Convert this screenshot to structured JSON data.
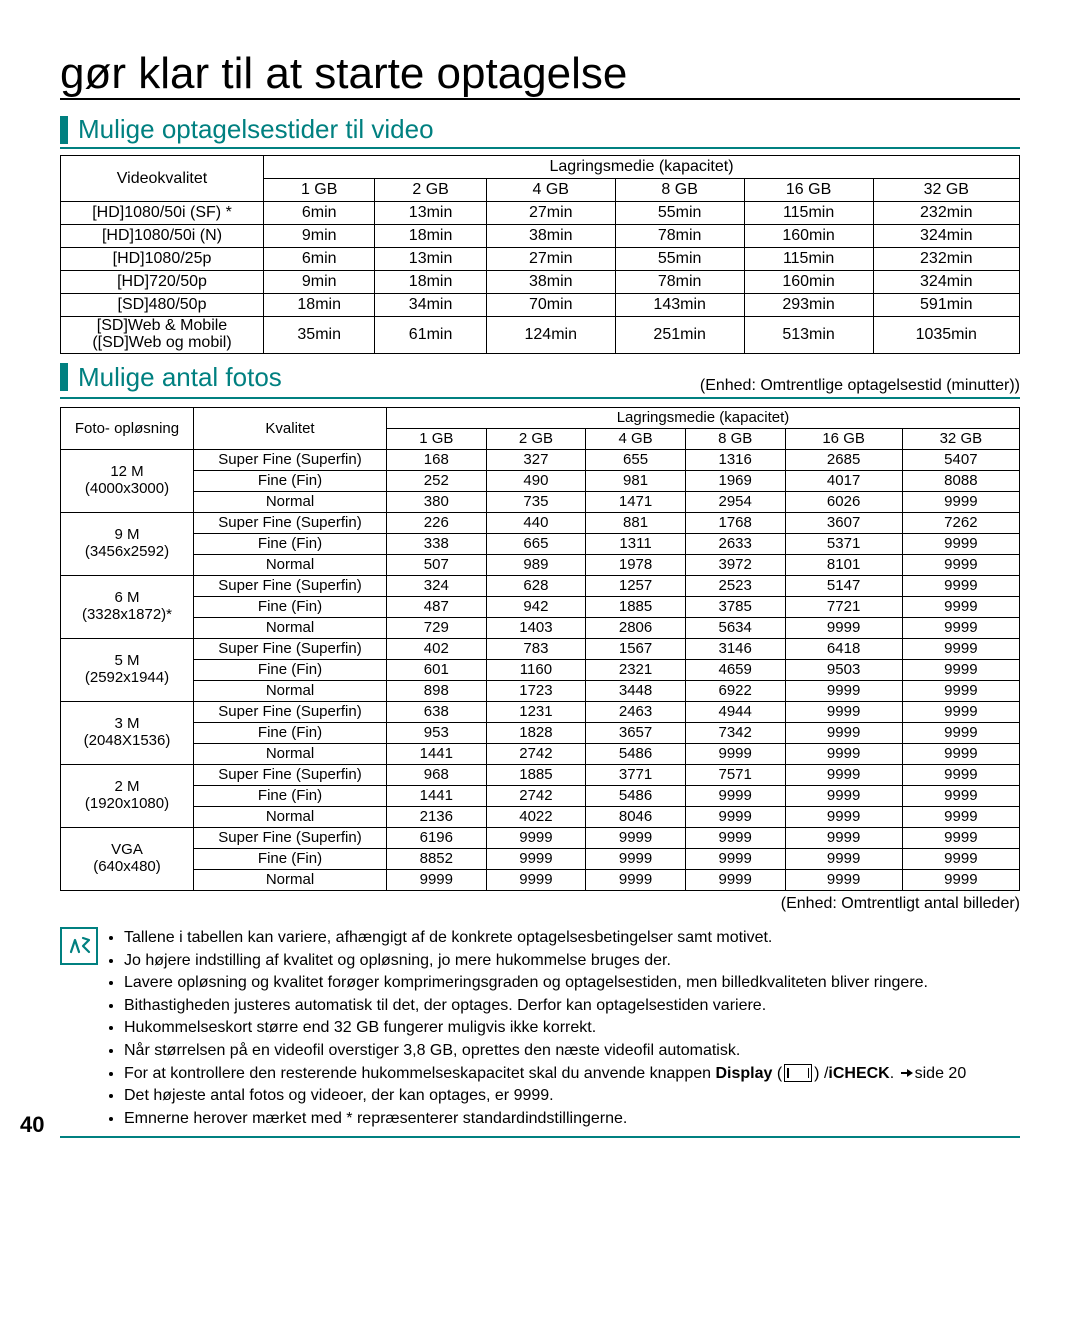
{
  "title": "gør klar til at starte optagelse",
  "video_section_heading": "Mulige optagelsestider til video",
  "photo_section_heading": "Mulige antal fotos",
  "storage_header": "Lagringsmedie (kapacitet)",
  "video_quality_header": "Videokvalitet",
  "photo_resolution_header": "Foto- opløsning",
  "quality_header": "Kvalitet",
  "capacities": [
    "1 GB",
    "2 GB",
    "4 GB",
    "8 GB",
    "16 GB",
    "32 GB"
  ],
  "video_note": "(Enhed: Omtrentlige optagelsestid (minutter))",
  "photo_note": "(Enhed: Omtrentligt antal billeder)",
  "video_rows": [
    {
      "label": "[HD]1080/50i (SF) *",
      "v": [
        "6min",
        "13min",
        "27min",
        "55min",
        "115min",
        "232min"
      ]
    },
    {
      "label": "[HD]1080/50i (N)",
      "v": [
        "9min",
        "18min",
        "38min",
        "78min",
        "160min",
        "324min"
      ]
    },
    {
      "label": "[HD]1080/25p",
      "v": [
        "6min",
        "13min",
        "27min",
        "55min",
        "115min",
        "232min"
      ]
    },
    {
      "label": "[HD]720/50p",
      "v": [
        "9min",
        "18min",
        "38min",
        "78min",
        "160min",
        "324min"
      ]
    },
    {
      "label": "[SD]480/50p",
      "v": [
        "18min",
        "34min",
        "70min",
        "143min",
        "293min",
        "591min"
      ]
    },
    {
      "label": "[SD]Web & Mobile\n([SD]Web og mobil)",
      "v": [
        "35min",
        "61min",
        "124min",
        "251min",
        "513min",
        "1035min"
      ]
    }
  ],
  "quality_levels": [
    "Super Fine (Superfin)",
    "Fine (Fin)",
    "Normal"
  ],
  "photo_groups": [
    {
      "res": "12 M",
      "dim": "(4000x3000)",
      "rows": [
        [
          "168",
          "327",
          "655",
          "1316",
          "2685",
          "5407"
        ],
        [
          "252",
          "490",
          "981",
          "1969",
          "4017",
          "8088"
        ],
        [
          "380",
          "735",
          "1471",
          "2954",
          "6026",
          "9999"
        ]
      ]
    },
    {
      "res": "9 M",
      "dim": "(3456x2592)",
      "rows": [
        [
          "226",
          "440",
          "881",
          "1768",
          "3607",
          "7262"
        ],
        [
          "338",
          "665",
          "1311",
          "2633",
          "5371",
          "9999"
        ],
        [
          "507",
          "989",
          "1978",
          "3972",
          "8101",
          "9999"
        ]
      ]
    },
    {
      "res": "6 M",
      "dim": "(3328x1872)*",
      "rows": [
        [
          "324",
          "628",
          "1257",
          "2523",
          "5147",
          "9999"
        ],
        [
          "487",
          "942",
          "1885",
          "3785",
          "7721",
          "9999"
        ],
        [
          "729",
          "1403",
          "2806",
          "5634",
          "9999",
          "9999"
        ]
      ]
    },
    {
      "res": "5 M",
      "dim": "(2592x1944)",
      "rows": [
        [
          "402",
          "783",
          "1567",
          "3146",
          "6418",
          "9999"
        ],
        [
          "601",
          "1160",
          "2321",
          "4659",
          "9503",
          "9999"
        ],
        [
          "898",
          "1723",
          "3448",
          "6922",
          "9999",
          "9999"
        ]
      ]
    },
    {
      "res": "3 M",
      "dim": "(2048X1536)",
      "rows": [
        [
          "638",
          "1231",
          "2463",
          "4944",
          "9999",
          "9999"
        ],
        [
          "953",
          "1828",
          "3657",
          "7342",
          "9999",
          "9999"
        ],
        [
          "1441",
          "2742",
          "5486",
          "9999",
          "9999",
          "9999"
        ]
      ]
    },
    {
      "res": "2 M",
      "dim": "(1920x1080)",
      "rows": [
        [
          "968",
          "1885",
          "3771",
          "7571",
          "9999",
          "9999"
        ],
        [
          "1441",
          "2742",
          "5486",
          "9999",
          "9999",
          "9999"
        ],
        [
          "2136",
          "4022",
          "8046",
          "9999",
          "9999",
          "9999"
        ]
      ]
    },
    {
      "res": "VGA",
      "dim": "(640x480)",
      "rows": [
        [
          "6196",
          "9999",
          "9999",
          "9999",
          "9999",
          "9999"
        ],
        [
          "8852",
          "9999",
          "9999",
          "9999",
          "9999",
          "9999"
        ],
        [
          "9999",
          "9999",
          "9999",
          "9999",
          "9999",
          "9999"
        ]
      ]
    }
  ],
  "bullets": [
    "Tallene i tabellen kan variere, afhængigt af de konkrete optagelsesbetingelser samt motivet.",
    "Jo højere indstilling af kvalitet og opløsning, jo mere hukommelse bruges der.",
    "Lavere opløsning og kvalitet forøger komprimeringsgraden og optagelsestiden, men billedkvaliteten bliver ringere.",
    "Bithastigheden justeres automatisk til det, der optages. Derfor kan optagelsestiden variere.",
    "Hukommelseskort større end 32 GB fungerer muligvis ikke korrekt.",
    "Når størrelsen på en videofil overstiger 3,8 GB, oprettes den næste videofil automatisk."
  ],
  "bullet_display_prefix": "For at kontrollere den resterende hukommelseskapacitet skal du anvende knappen ",
  "bullet_display_bold": "Display",
  "bullet_display_icheck": "iCHECK",
  "bullet_display_arrow_text": "side 20",
  "bullets_tail": [
    "Det højeste antal fotos og videoer, der kan optages, er 9999.",
    "Emnerne herover mærket med * repræsenterer standardindstillingerne."
  ],
  "page_number": "40",
  "colors": {
    "accent": "#008080"
  }
}
